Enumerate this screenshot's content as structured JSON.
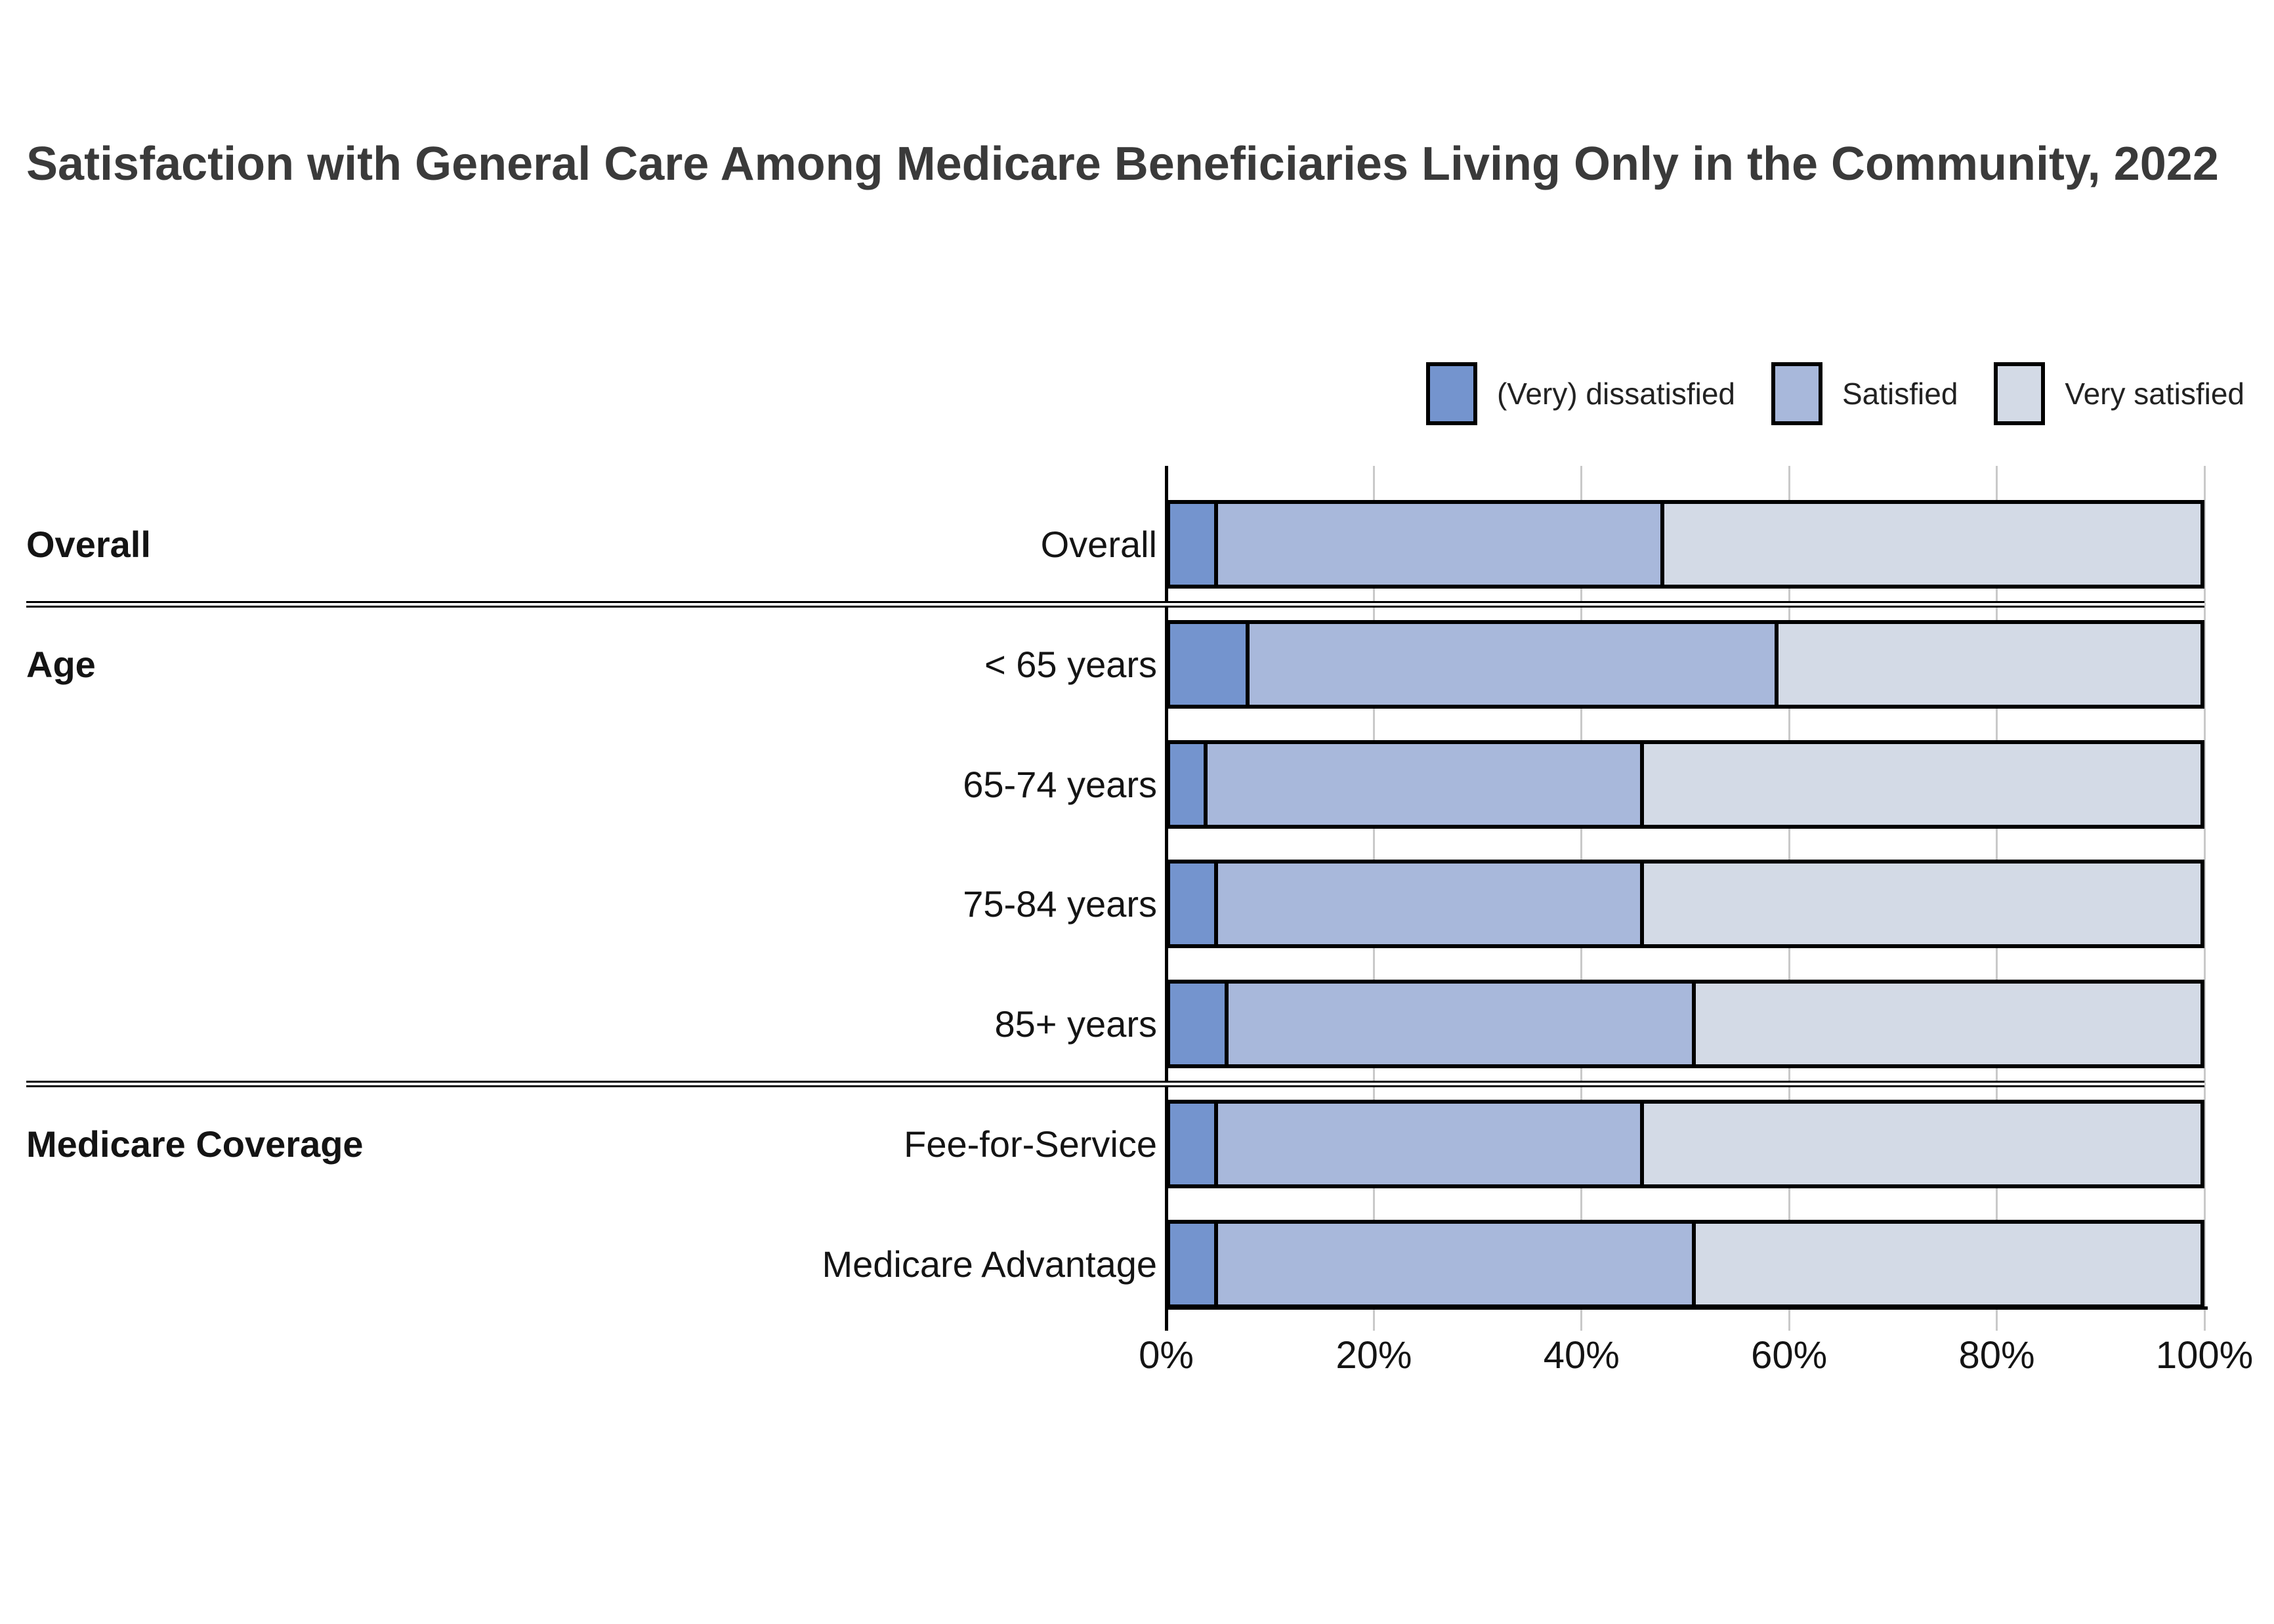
{
  "title": "Satisfaction with General Care Among Medicare Beneficiaries Living Only in the Community, 2022",
  "legend": [
    {
      "label": "(Very) dissatisfied",
      "color": "#7494CE"
    },
    {
      "label": "Satisfied",
      "color": "#A8B8DB"
    },
    {
      "label": "Very satisfied",
      "color": "#D3DAE6"
    }
  ],
  "chart_data": {
    "type": "bar",
    "subtype": "horizontal_stacked",
    "title": "Satisfaction with General Care Among Medicare Beneficiaries Living Only in the Community, 2022",
    "unit": "percent",
    "xlim": [
      0,
      100
    ],
    "x_tick_labels": [
      "0%",
      "20%",
      "40%",
      "60%",
      "80%",
      "100%"
    ],
    "grid": "vertical",
    "legend_position": "top-right",
    "series_names": [
      "(Very) dissatisfied",
      "Satisfied",
      "Very satisfied"
    ],
    "groups": [
      {
        "label": "Overall",
        "rows": [
          {
            "label": "Overall",
            "values": [
              5,
              43,
              52
            ]
          }
        ]
      },
      {
        "label": "Age",
        "rows": [
          {
            "label": "< 65 years",
            "values": [
              8,
              51,
              41
            ]
          },
          {
            "label": "65-74 years",
            "values": [
              4,
              42,
              54
            ]
          },
          {
            "label": "75-84 years",
            "values": [
              5,
              41,
              54
            ]
          },
          {
            "label": "85+ years",
            "values": [
              6,
              45,
              49
            ]
          }
        ]
      },
      {
        "label": "Medicare Coverage",
        "rows": [
          {
            "label": "Fee-for-Service",
            "values": [
              5,
              41,
              54
            ]
          },
          {
            "label": "Medicare Advantage",
            "values": [
              5,
              46,
              49
            ]
          }
        ]
      }
    ]
  }
}
